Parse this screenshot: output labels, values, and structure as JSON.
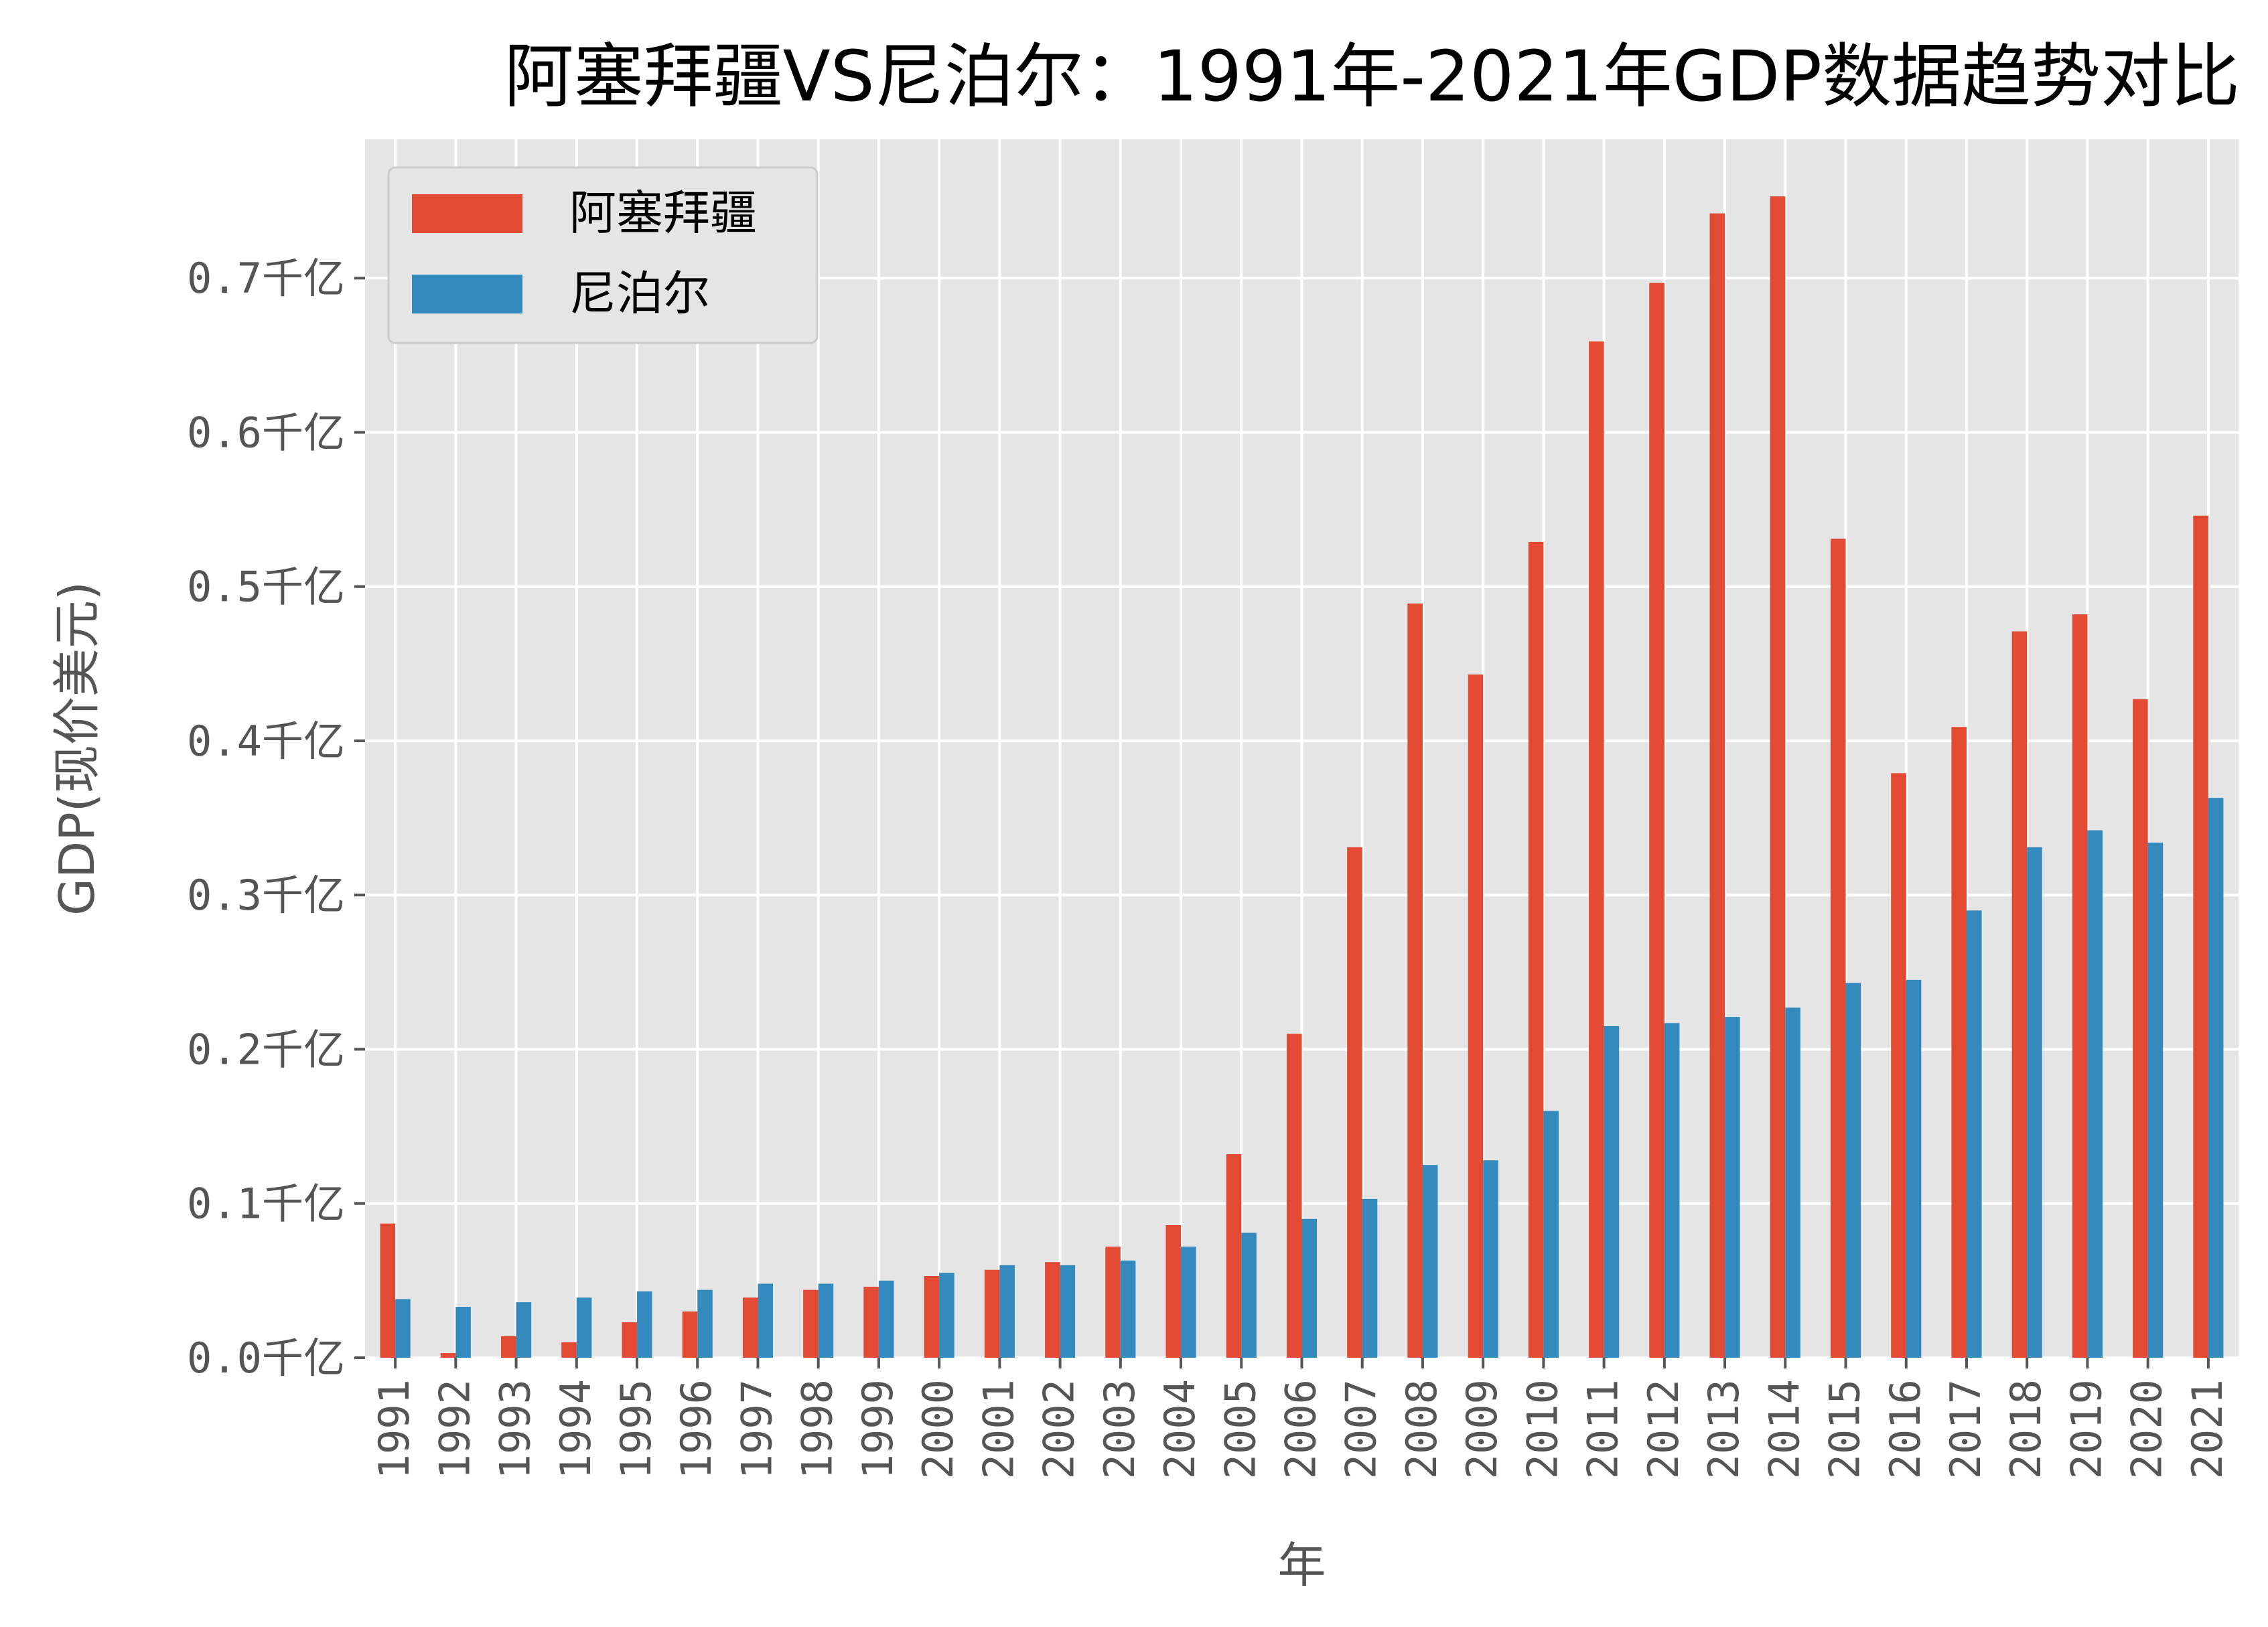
{
  "chart_data": {
    "type": "bar",
    "title": "阿塞拜疆VS尼泊尔：1991年-2021年GDP数据趋势对比",
    "xlabel": "年",
    "ylabel": "GDP(现价美元)",
    "ylim": [
      0,
      0.79
    ],
    "yticks": [
      0.0,
      0.1,
      0.2,
      0.3,
      0.4,
      0.5,
      0.6,
      0.7
    ],
    "ytick_labels": [
      "0.0千亿",
      "0.1千亿",
      "0.2千亿",
      "0.3千亿",
      "0.4千亿",
      "0.5千亿",
      "0.6千亿",
      "0.7千亿"
    ],
    "grid": true,
    "legend_position": "top-left",
    "categories": [
      "1991",
      "1992",
      "1993",
      "1994",
      "1995",
      "1996",
      "1997",
      "1998",
      "1999",
      "2000",
      "2001",
      "2002",
      "2003",
      "2004",
      "2005",
      "2006",
      "2007",
      "2008",
      "2009",
      "2010",
      "2011",
      "2012",
      "2013",
      "2014",
      "2015",
      "2016",
      "2017",
      "2018",
      "2019",
      "2020",
      "2021"
    ],
    "series": [
      {
        "name": "阿塞拜疆",
        "color": "#E24A33",
        "values": [
          0.087,
          0.003,
          0.014,
          0.01,
          0.023,
          0.03,
          0.039,
          0.044,
          0.046,
          0.053,
          0.057,
          0.062,
          0.072,
          0.086,
          0.132,
          0.21,
          0.331,
          0.489,
          0.443,
          0.529,
          0.659,
          0.697,
          0.742,
          0.753,
          0.531,
          0.379,
          0.409,
          0.471,
          0.482,
          0.427,
          0.546
        ]
      },
      {
        "name": "尼泊尔",
        "color": "#348ABD",
        "values": [
          0.038,
          0.033,
          0.036,
          0.039,
          0.043,
          0.044,
          0.048,
          0.048,
          0.05,
          0.055,
          0.06,
          0.06,
          0.063,
          0.072,
          0.081,
          0.09,
          0.103,
          0.125,
          0.128,
          0.16,
          0.215,
          0.217,
          0.221,
          0.227,
          0.243,
          0.245,
          0.29,
          0.331,
          0.342,
          0.334,
          0.363
        ]
      }
    ]
  }
}
